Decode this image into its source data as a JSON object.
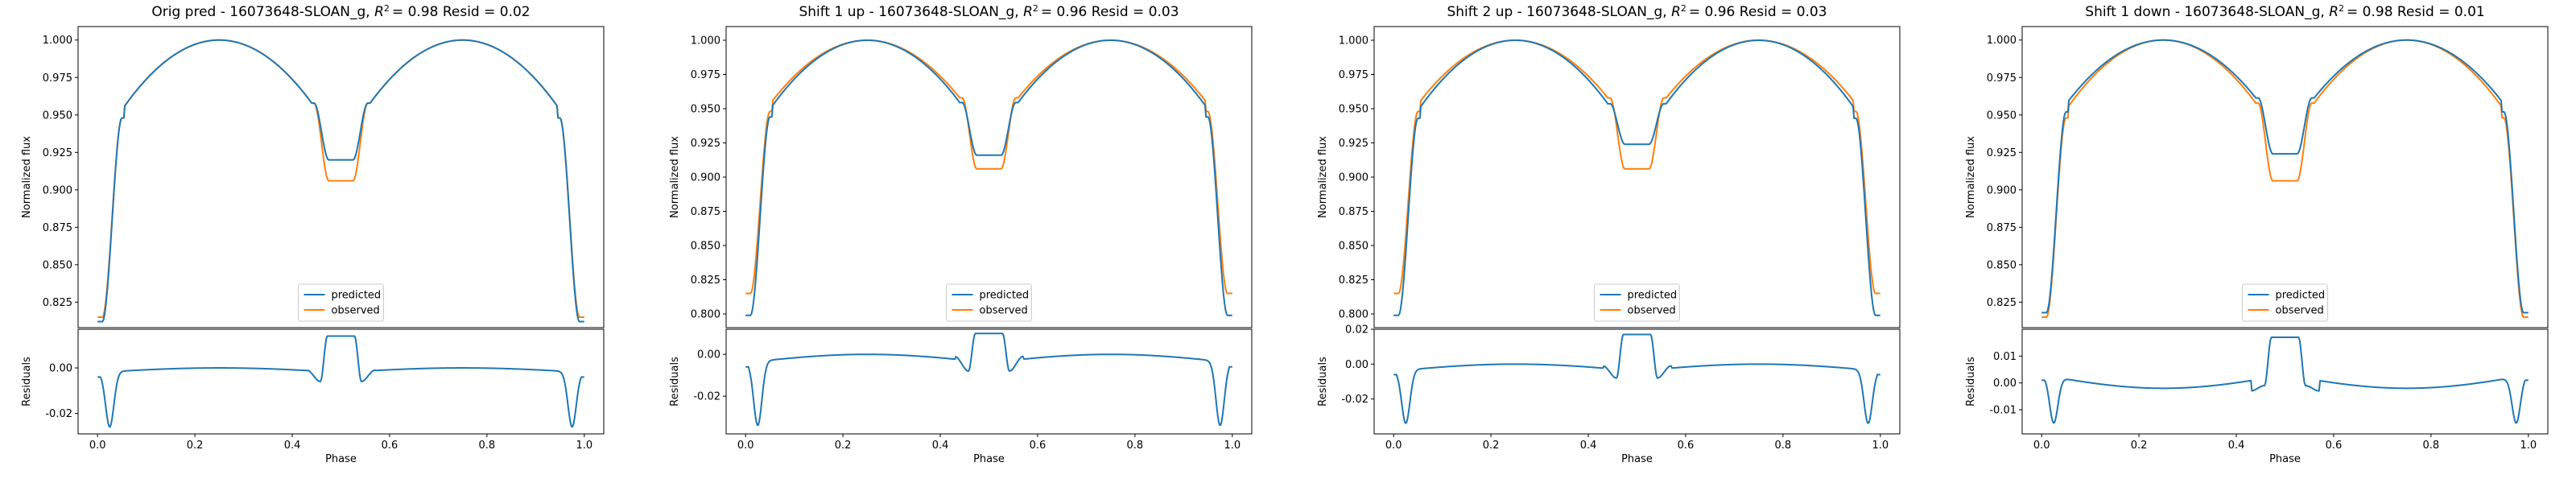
{
  "colors": {
    "predicted": "#1f77b4",
    "observed": "#ff7f0e"
  },
  "chart_data": [
    {
      "type": "line",
      "title": "Orig pred - 16073648-SLOAN_g, R² = 0.98 Resid = 0.02",
      "title_main": "Orig pred - 16073648-SLOAN_g, ",
      "title_r2": "= 0.98 Resid = 0.02",
      "xlabel": "Phase",
      "ylabel": "Normalized flux",
      "resid_ylabel": "Residuals",
      "xticks": [
        "0.0",
        "0.2",
        "0.4",
        "0.6",
        "0.8",
        "1.0"
      ],
      "xlim": [
        -0.04,
        1.04
      ],
      "ylim": [
        0.808,
        1.009
      ],
      "yticks": [
        "0.825",
        "0.850",
        "0.875",
        "0.900",
        "0.925",
        "0.950",
        "0.975",
        "1.000"
      ],
      "resid_ylim": [
        -0.029,
        0.017
      ],
      "resid_yticks": [
        "-0.02",
        "0.00"
      ],
      "legend": [
        "predicted",
        "observed"
      ],
      "legend_position": "lower center",
      "series": [
        {
          "name": "predicted",
          "dip_min": 0.812,
          "shoulder": 0.951,
          "center_min": 0.92
        },
        {
          "name": "observed",
          "dip_min": 0.815,
          "shoulder": 0.951,
          "center_min": 0.906
        }
      ],
      "residuals": {
        "dip": -0.026,
        "center": 0.014,
        "base_edge": -0.002,
        "base_peak": 0.0
      }
    },
    {
      "type": "line",
      "title": "Shift 1 up - 16073648-SLOAN_g, R² = 0.96 Resid = 0.03",
      "title_main": "Shift 1 up - 16073648-SLOAN_g, ",
      "title_r2": "= 0.96 Resid = 0.03",
      "xlabel": "Phase",
      "ylabel": "Normalized flux",
      "resid_ylabel": "Residuals",
      "xticks": [
        "0.0",
        "0.2",
        "0.4",
        "0.6",
        "0.8",
        "1.0"
      ],
      "xlim": [
        -0.04,
        1.04
      ],
      "ylim": [
        0.79,
        1.01
      ],
      "yticks": [
        "0.800",
        "0.825",
        "0.850",
        "0.875",
        "0.900",
        "0.925",
        "0.950",
        "0.975",
        "1.000"
      ],
      "resid_ylim": [
        -0.038,
        0.012
      ],
      "resid_yticks": [
        "-0.02",
        "0.00"
      ],
      "legend": [
        "predicted",
        "observed"
      ],
      "legend_position": "lower center",
      "series": [
        {
          "name": "predicted",
          "dip_min": 0.799,
          "shoulder": 0.947,
          "center_min": 0.916
        },
        {
          "name": "observed",
          "dip_min": 0.815,
          "shoulder": 0.951,
          "center_min": 0.906
        }
      ],
      "residuals": {
        "dip": -0.034,
        "center": 0.01,
        "base_edge": -0.004,
        "base_peak": 0.0
      }
    },
    {
      "type": "line",
      "title": "Shift 2 up - 16073648-SLOAN_g, R² = 0.96 Resid = 0.03",
      "title_main": "Shift 2 up - 16073648-SLOAN_g, ",
      "title_r2": "= 0.96 Resid = 0.03",
      "xlabel": "Phase",
      "ylabel": "Normalized flux",
      "resid_ylabel": "Residuals",
      "xticks": [
        "0.0",
        "0.2",
        "0.4",
        "0.6",
        "0.8",
        "1.0"
      ],
      "xlim": [
        -0.04,
        1.04
      ],
      "ylim": [
        0.79,
        1.01
      ],
      "yticks": [
        "0.800",
        "0.825",
        "0.850",
        "0.875",
        "0.900",
        "0.925",
        "0.950",
        "0.975",
        "1.000"
      ],
      "resid_ylim": [
        -0.04,
        0.02
      ],
      "resid_yticks": [
        "-0.02",
        "0.00",
        "0.02"
      ],
      "legend": [
        "predicted",
        "observed"
      ],
      "legend_position": "lower center",
      "series": [
        {
          "name": "predicted",
          "dip_min": 0.799,
          "shoulder": 0.946,
          "center_min": 0.924
        },
        {
          "name": "observed",
          "dip_min": 0.815,
          "shoulder": 0.951,
          "center_min": 0.906
        }
      ],
      "residuals": {
        "dip": -0.034,
        "center": 0.017,
        "base_edge": -0.004,
        "base_peak": 0.0
      }
    },
    {
      "type": "line",
      "title": "Shift 1 down - 16073648-SLOAN_g, R² = 0.98 Resid = 0.01",
      "title_main": "Shift 1 down - 16073648-SLOAN_g, ",
      "title_r2": "= 0.98 Resid = 0.01",
      "xlabel": "Phase",
      "ylabel": "Normalized flux",
      "resid_ylabel": "Residuals",
      "xticks": [
        "0.0",
        "0.2",
        "0.4",
        "0.6",
        "0.8",
        "1.0"
      ],
      "xlim": [
        -0.04,
        1.04
      ],
      "ylim": [
        0.808,
        1.009
      ],
      "yticks": [
        "0.825",
        "0.850",
        "0.875",
        "0.900",
        "0.925",
        "0.950",
        "0.975",
        "1.000"
      ],
      "resid_ylim": [
        -0.019,
        0.02
      ],
      "resid_yticks": [
        "-0.01",
        "0.00",
        "0.01"
      ],
      "legend": [
        "predicted",
        "observed"
      ],
      "legend_position": "lower center",
      "series": [
        {
          "name": "predicted",
          "dip_min": 0.818,
          "shoulder": 0.955,
          "center_min": 0.924
        },
        {
          "name": "observed",
          "dip_min": 0.815,
          "shoulder": 0.951,
          "center_min": 0.906
        }
      ],
      "residuals": {
        "dip": -0.015,
        "center": 0.017,
        "base_edge": 0.003,
        "base_peak": -0.002
      }
    }
  ]
}
